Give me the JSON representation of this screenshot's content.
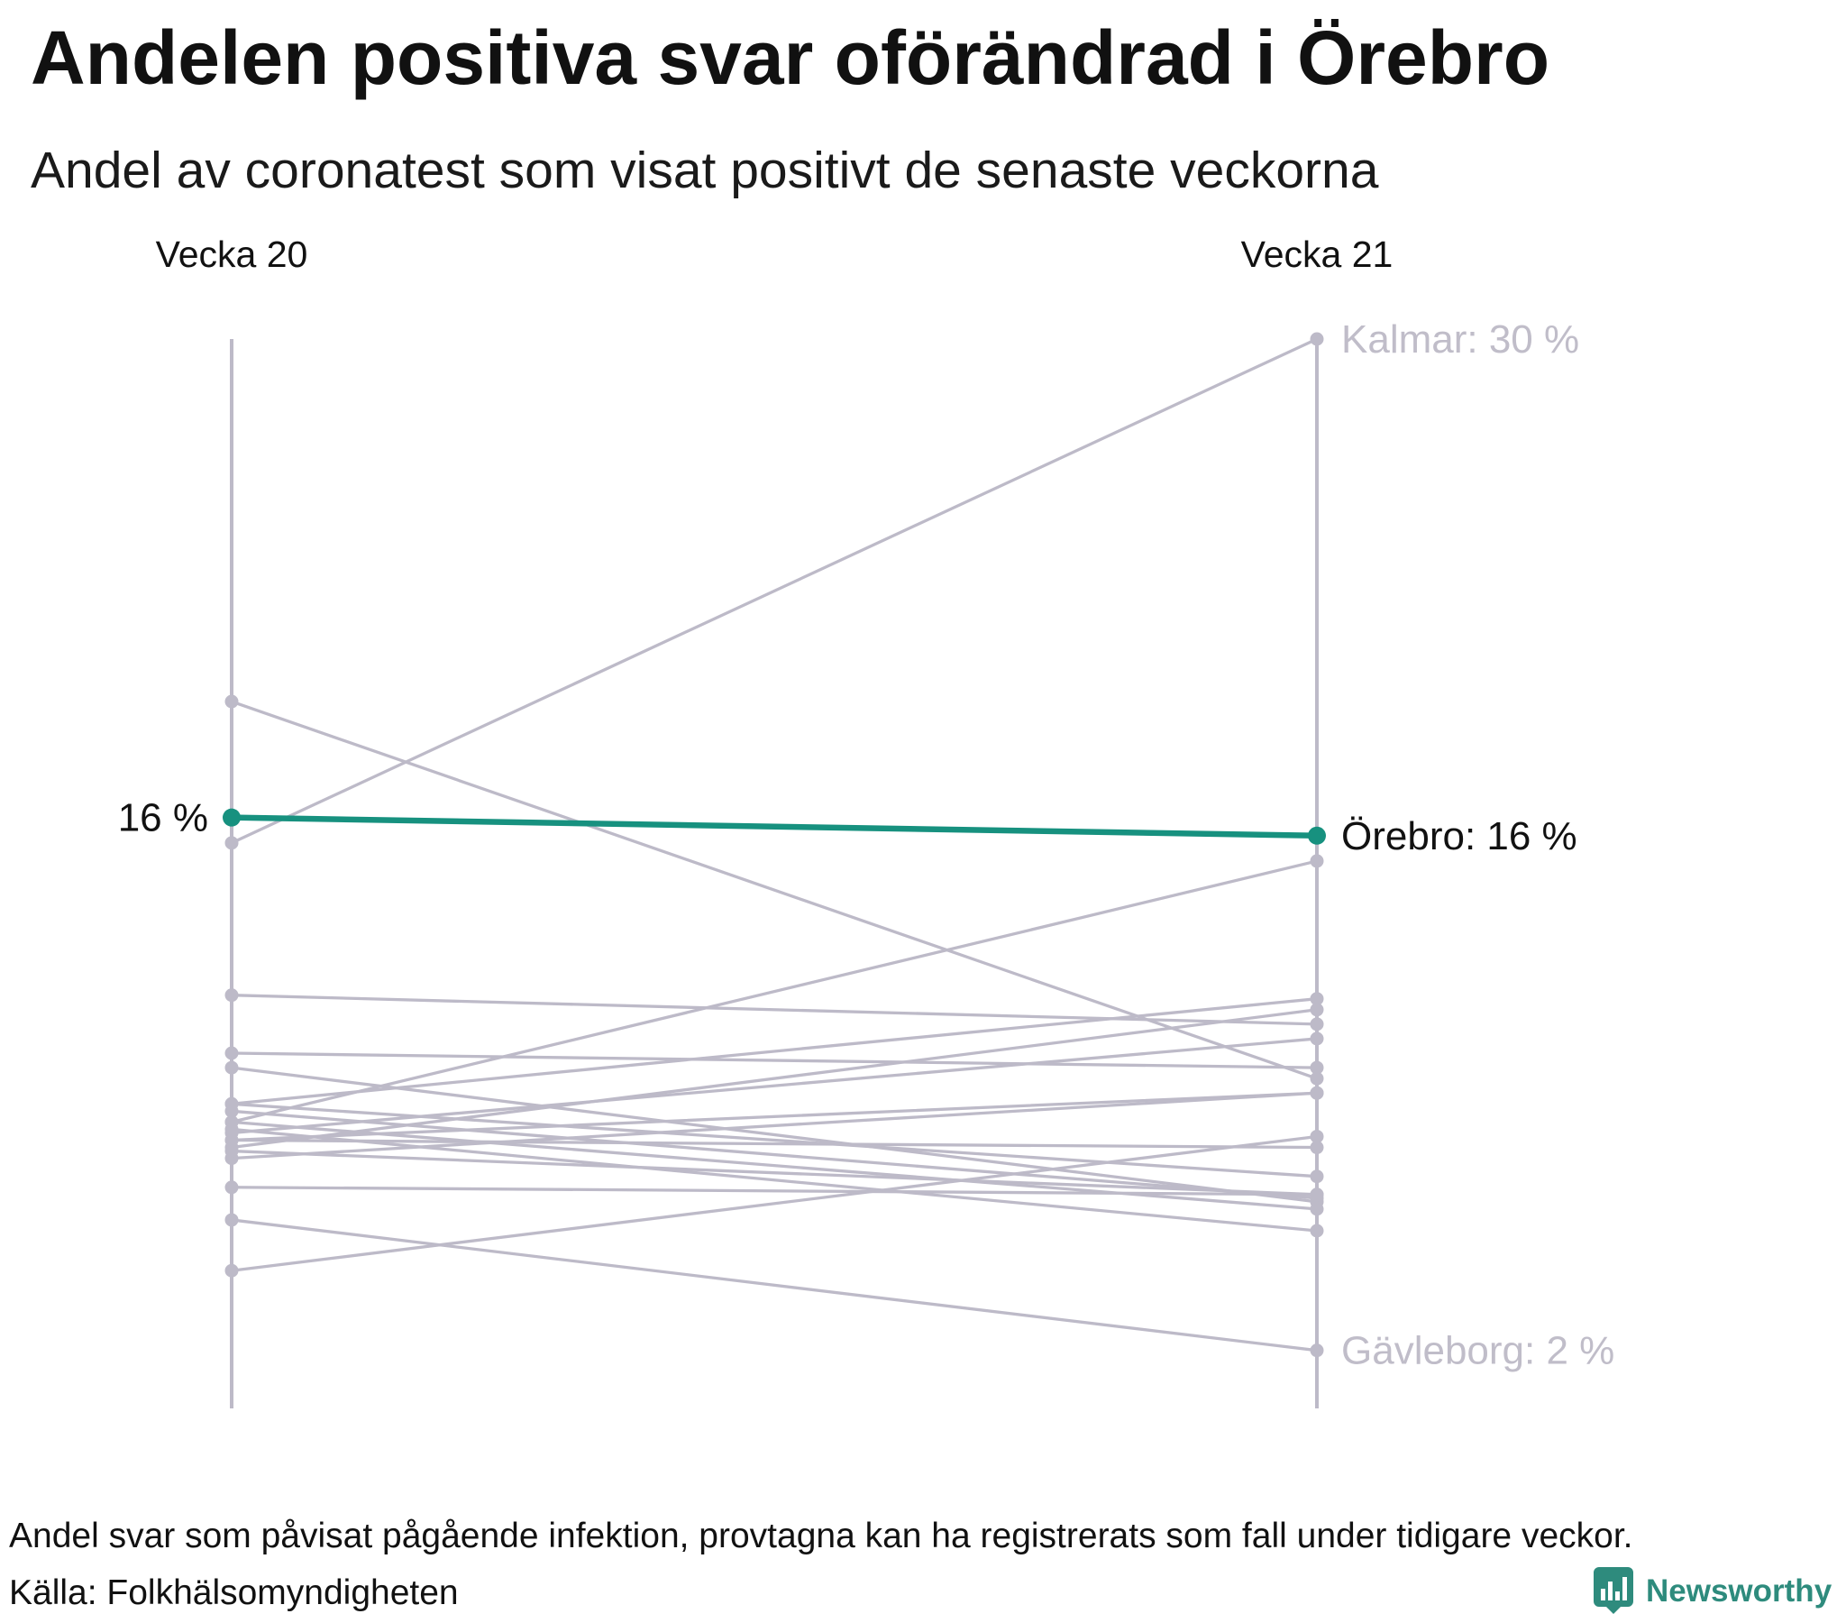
{
  "chart_data": {
    "type": "line",
    "title": "Andelen positiva svar oförändrad i Örebro",
    "subtitle": "Andel av coronatest som visat positivt de senaste veckorna",
    "categories": [
      "Vecka 20",
      "Vecka 21"
    ],
    "xlabel": "",
    "ylabel": "",
    "ylim": [
      0.1,
      29.6
    ],
    "grid": false,
    "colors": {
      "highlight": "#17917f",
      "other": "#bdbac8",
      "other_label": "#c0bdc9",
      "highlight_label": "#111111",
      "axis": "#bdbac8"
    },
    "series": [
      {
        "values": [
          15.7,
          29.6
        ],
        "end_label": "Kalmar: 30 %"
      },
      {
        "values": [
          19.6,
          9.2
        ]
      },
      {
        "values": [
          11.5,
          10.7
        ]
      },
      {
        "values": [
          9.9,
          9.5
        ]
      },
      {
        "values": [
          9.5,
          5.8
        ]
      },
      {
        "values": [
          3.9,
          7.6
        ]
      },
      {
        "values": [
          5.3,
          1.7
        ],
        "end_label": "Gävleborg: 2 %"
      },
      {
        "values": [
          6.2,
          6.0
        ]
      },
      {
        "values": [
          8.0,
          15.2
        ]
      },
      {
        "values": [
          8.5,
          11.4
        ]
      },
      {
        "values": [
          7.3,
          11.1
        ]
      },
      {
        "values": [
          7.7,
          10.3
        ]
      },
      {
        "values": [
          7.5,
          8.8
        ]
      },
      {
        "values": [
          7.0,
          8.8
        ]
      },
      {
        "values": [
          7.5,
          7.3
        ]
      },
      {
        "values": [
          8.5,
          6.5
        ]
      },
      {
        "values": [
          8.3,
          5.9
        ]
      },
      {
        "values": [
          8.0,
          5.6
        ]
      },
      {
        "values": [
          7.8,
          5.0
        ]
      },
      {
        "values": [
          7.2,
          6.0
        ]
      },
      {
        "values": [
          16.4,
          15.9
        ],
        "highlight": true,
        "start_label": "16 %",
        "end_label": "Örebro: 16 %"
      }
    ],
    "note": "Andel svar som påvisat pågående infektion, provtagna kan ha registrerats som fall under tidigare veckor.",
    "source": "Källa: Folkhälsomyndigheten"
  },
  "brand": {
    "name": "Newsworthy",
    "icon": "bar-chart-speech-bubble-icon",
    "color": "#2e8b7d"
  }
}
